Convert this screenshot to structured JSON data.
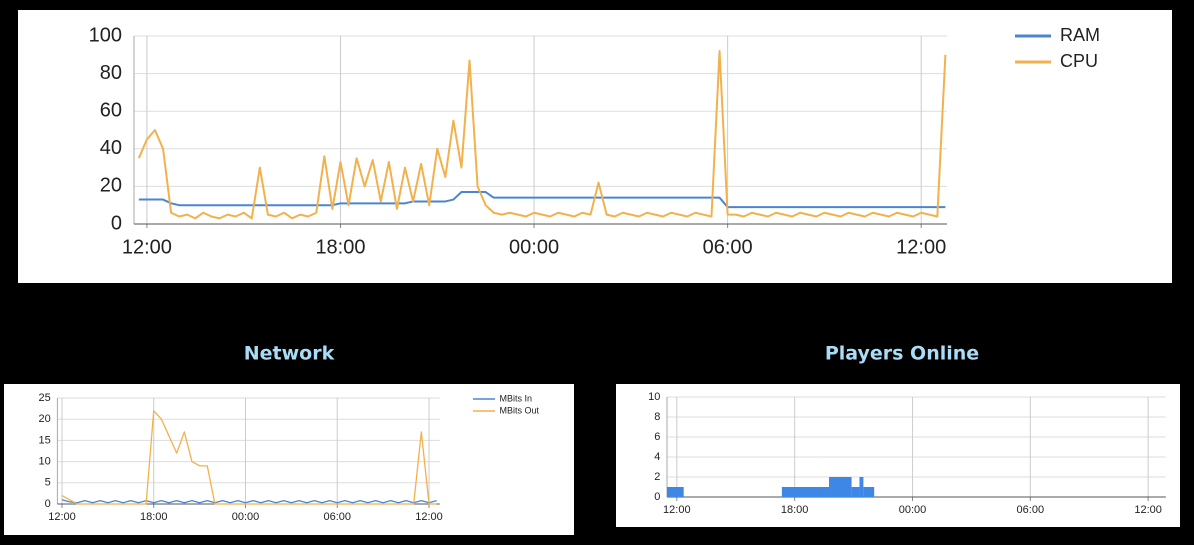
{
  "chart_data": [
    {
      "type": "line",
      "x": [
        -0.25,
        0,
        0.25,
        0.5,
        0.75,
        1,
        1.25,
        1.5,
        1.75,
        2,
        2.25,
        2.5,
        2.75,
        3,
        3.25,
        3.5,
        3.75,
        4,
        4.25,
        4.5,
        4.75,
        5,
        5.25,
        5.5,
        5.75,
        6,
        6.25,
        6.5,
        6.75,
        7,
        7.25,
        7.5,
        7.75,
        8,
        8.25,
        8.5,
        8.75,
        9,
        9.25,
        9.5,
        9.75,
        10,
        10.25,
        10.5,
        10.75,
        11,
        11.25,
        11.5,
        11.75,
        12,
        12.25,
        12.5,
        12.75,
        13,
        13.25,
        13.5,
        13.75,
        14,
        14.25,
        14.5,
        14.75,
        15,
        15.25,
        15.5,
        15.75,
        16,
        16.25,
        16.5,
        16.75,
        17,
        17.25,
        17.5,
        17.75,
        18,
        18.25,
        18.5,
        18.75,
        19,
        19.25,
        19.5,
        19.75,
        20,
        20.25,
        20.5,
        20.75,
        21,
        21.25,
        21.5,
        21.75,
        22,
        22.25,
        22.5,
        22.75,
        23,
        23.25,
        23.5,
        23.75,
        24,
        24.25,
        24.5,
        24.75
      ],
      "series": [
        {
          "name": "RAM",
          "color": "#4a86d0",
          "values": [
            13,
            13,
            13,
            13,
            11,
            10,
            10,
            10,
            10,
            10,
            10,
            10,
            10,
            10,
            10,
            10,
            10,
            10,
            10,
            10,
            10,
            10,
            10,
            10,
            10,
            11,
            11,
            11,
            11,
            11,
            11,
            11,
            11,
            11,
            12,
            12,
            12,
            12,
            12,
            13,
            17,
            17,
            17,
            17,
            14,
            14,
            14,
            14,
            14,
            14,
            14,
            14,
            14,
            14,
            14,
            14,
            14,
            14,
            14,
            14,
            14,
            14,
            14,
            14,
            14,
            14,
            14,
            14,
            14,
            14,
            14,
            14,
            14,
            9,
            9,
            9,
            9,
            9,
            9,
            9,
            9,
            9,
            9,
            9,
            9,
            9,
            9,
            9,
            9,
            9,
            9,
            9,
            9,
            9,
            9,
            9,
            9,
            9,
            9,
            9,
            9
          ]
        },
        {
          "name": "CPU",
          "color": "#f2b14c",
          "values": [
            35,
            45,
            50,
            40,
            6,
            4,
            5,
            3,
            6,
            4,
            3,
            5,
            4,
            6,
            3,
            30,
            5,
            4,
            6,
            3,
            5,
            4,
            6,
            36,
            8,
            33,
            10,
            35,
            20,
            34,
            12,
            33,
            8,
            30,
            12,
            32,
            10,
            40,
            25,
            55,
            30,
            87,
            20,
            10,
            6,
            5,
            6,
            5,
            4,
            6,
            5,
            4,
            6,
            5,
            4,
            6,
            5,
            22,
            5,
            4,
            6,
            5,
            4,
            6,
            5,
            4,
            6,
            5,
            4,
            6,
            5,
            4,
            92,
            5,
            5,
            4,
            6,
            5,
            4,
            6,
            5,
            4,
            6,
            5,
            4,
            6,
            5,
            4,
            6,
            5,
            4,
            6,
            5,
            4,
            6,
            5,
            4,
            6,
            5,
            4,
            90
          ]
        }
      ],
      "xlim": [
        -0.4,
        24.8
      ],
      "xticks": [
        {
          "value": 0,
          "label": "12:00"
        },
        {
          "value": 6,
          "label": "18:00"
        },
        {
          "value": 12,
          "label": "00:00"
        },
        {
          "value": 18,
          "label": "06:00"
        },
        {
          "value": 24,
          "label": "12:00"
        }
      ],
      "ylim": [
        0,
        100
      ],
      "yticks": [
        0,
        20,
        40,
        60,
        80,
        100
      ],
      "grid": true,
      "legend": "right"
    },
    {
      "type": "line",
      "title": "Network",
      "x": [
        0,
        0.5,
        1,
        1.5,
        2,
        2.5,
        3,
        3.5,
        4,
        4.5,
        5,
        5.5,
        6,
        6.5,
        7,
        7.5,
        8,
        8.5,
        9,
        9.5,
        10,
        10.5,
        11,
        11.5,
        12,
        12.5,
        13,
        13.5,
        14,
        14.5,
        15,
        15.5,
        16,
        16.5,
        17,
        17.5,
        18,
        18.5,
        19,
        19.5,
        20,
        20.5,
        21,
        21.5,
        22,
        22.5,
        23,
        23.5,
        24,
        24.5
      ],
      "series": [
        {
          "name": "MBits In",
          "color": "#4a86d0",
          "values": [
            1,
            0.5,
            0.3,
            0.8,
            0.3,
            0.8,
            0.3,
            0.8,
            0.3,
            0.8,
            0.3,
            0.8,
            0.3,
            0.8,
            0.3,
            0.8,
            0.3,
            0.8,
            0.3,
            0.8,
            0.3,
            0.8,
            0.3,
            0.8,
            0.3,
            0.8,
            0.3,
            0.8,
            0.3,
            0.8,
            0.3,
            0.8,
            0.3,
            0.8,
            0.3,
            0.8,
            0.3,
            0.8,
            0.3,
            0.8,
            0.3,
            0.8,
            0.3,
            0.8,
            0.3,
            0.8,
            0.3,
            0.8,
            0.3,
            0.8
          ]
        },
        {
          "name": "MBits Out",
          "color": "#f2b14c",
          "values": [
            2,
            1,
            0,
            0,
            0,
            0,
            0,
            0,
            0,
            0,
            0,
            0,
            22,
            20,
            16,
            12,
            17,
            10,
            9,
            9,
            0,
            0,
            0,
            0,
            0,
            0,
            0,
            0,
            0,
            0,
            0,
            0,
            0,
            0,
            0,
            0,
            0,
            0,
            0,
            0,
            0,
            0,
            0,
            0,
            0,
            0,
            0,
            17,
            0,
            0
          ]
        }
      ],
      "xlim": [
        -0.3,
        24.7
      ],
      "xticks": [
        {
          "value": 0,
          "label": "12:00"
        },
        {
          "value": 6,
          "label": "18:00"
        },
        {
          "value": 12,
          "label": "00:00"
        },
        {
          "value": 18,
          "label": "06:00"
        },
        {
          "value": 24,
          "label": "12:00"
        }
      ],
      "ylim": [
        0,
        25
      ],
      "yticks": [
        0,
        5,
        10,
        15,
        20,
        25
      ],
      "grid": true,
      "legend": "right"
    },
    {
      "type": "histogram",
      "title": "Players Online",
      "color": "#3f87e6",
      "bins": [
        -0.5,
        0.35,
        5.35,
        7.75,
        8.9,
        9.3,
        9.5,
        10.05,
        24.9
      ],
      "values": [
        1,
        0,
        1,
        2,
        1,
        2,
        1,
        0
      ],
      "xlim": [
        -0.5,
        24.9
      ],
      "xticks": [
        {
          "value": 0,
          "label": "12:00"
        },
        {
          "value": 6,
          "label": "18:00"
        },
        {
          "value": 12,
          "label": "00:00"
        },
        {
          "value": 18,
          "label": "06:00"
        },
        {
          "value": 24,
          "label": "12:00"
        }
      ],
      "ylim": [
        0,
        10
      ],
      "yticks": [
        0,
        2,
        4,
        6,
        8,
        10
      ],
      "grid": true
    }
  ]
}
